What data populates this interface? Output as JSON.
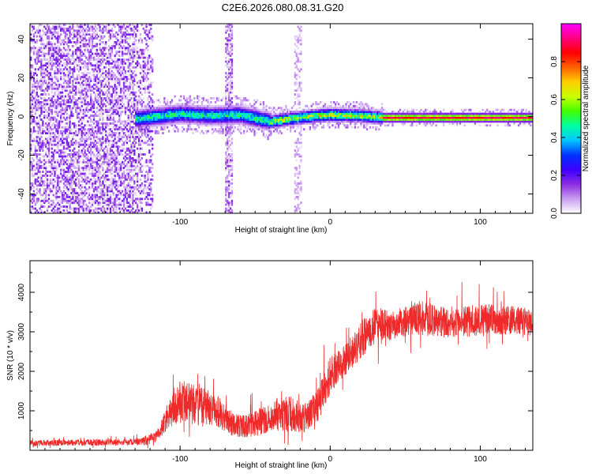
{
  "figure": {
    "title": "C2E6.2026.080.08.31.G20"
  },
  "chart_data": [
    {
      "type": "heatmap",
      "xlabel": "Height of straight line (km)",
      "ylabel": "Frequency (Hz)",
      "xlim": [
        -200,
        135
      ],
      "ylim": [
        -50,
        48
      ],
      "xticks": [
        -100,
        0,
        100
      ],
      "yticks": [
        -40,
        -20,
        0,
        20,
        40
      ],
      "colorbar": {
        "label": "Normalized spectral amplitude",
        "range": [
          0,
          1
        ],
        "ticks": [
          0.0,
          0.2,
          0.4,
          0.6,
          0.8
        ],
        "colormap": [
          "#ffffff",
          "#c89cf0",
          "#8a2be2",
          "#3a00ff",
          "#0033ff",
          "#00c8ff",
          "#00ffa0",
          "#40ff00",
          "#c8ff00",
          "#ffd000",
          "#ff6000",
          "#ff0000",
          "#ff0080",
          "#ff00ff"
        ]
      },
      "features": {
        "noise_region_x": [
          -200,
          -118
        ],
        "signal_ridge": [
          {
            "x": -128,
            "y": -1.5
          },
          {
            "x": -100,
            "y": 1.0
          },
          {
            "x": -80,
            "y": 0.0
          },
          {
            "x": -60,
            "y": 0.5
          },
          {
            "x": -40,
            "y": -3.0
          },
          {
            "x": -30,
            "y": -2.0
          },
          {
            "x": -10,
            "y": 0.0
          },
          {
            "x": 0,
            "y": 0.5
          },
          {
            "x": 20,
            "y": 0.0
          },
          {
            "x": 35,
            "y": -1.0
          },
          {
            "x": 60,
            "y": -1.0
          },
          {
            "x": 100,
            "y": -1.0
          },
          {
            "x": 135,
            "y": -1.0
          }
        ],
        "vertical_streaks_x": [
          -68,
          -22
        ]
      }
    },
    {
      "type": "line",
      "xlabel": "Height of straight line (km)",
      "ylabel": "SNR (10 * v/v)",
      "xlim": [
        -200,
        135
      ],
      "ylim": [
        0,
        4800
      ],
      "xticks": [
        -100,
        0,
        100
      ],
      "yticks": [
        1000,
        2000,
        3000,
        4000
      ],
      "series": [
        {
          "color": "#ee2a2a",
          "envelope": [
            {
              "x": -200,
              "mean": 180,
              "spread": 100
            },
            {
              "x": -150,
              "mean": 200,
              "spread": 110
            },
            {
              "x": -125,
              "mean": 220,
              "spread": 140
            },
            {
              "x": -115,
              "mean": 350,
              "spread": 200
            },
            {
              "x": -108,
              "mean": 900,
              "spread": 450
            },
            {
              "x": -100,
              "mean": 1250,
              "spread": 750
            },
            {
              "x": -85,
              "mean": 1100,
              "spread": 650
            },
            {
              "x": -75,
              "mean": 1000,
              "spread": 550
            },
            {
              "x": -65,
              "mean": 650,
              "spread": 400
            },
            {
              "x": -55,
              "mean": 600,
              "spread": 400
            },
            {
              "x": -40,
              "mean": 850,
              "spread": 500
            },
            {
              "x": -28,
              "mean": 950,
              "spread": 600
            },
            {
              "x": -18,
              "mean": 800,
              "spread": 500
            },
            {
              "x": -8,
              "mean": 1150,
              "spread": 550
            },
            {
              "x": 0,
              "mean": 1900,
              "spread": 650
            },
            {
              "x": 10,
              "mean": 2300,
              "spread": 550
            },
            {
              "x": 18,
              "mean": 2700,
              "spread": 650
            },
            {
              "x": 30,
              "mean": 3150,
              "spread": 600
            },
            {
              "x": 45,
              "mean": 3200,
              "spread": 500
            },
            {
              "x": 60,
              "mean": 3350,
              "spread": 600
            },
            {
              "x": 80,
              "mean": 3200,
              "spread": 500
            },
            {
              "x": 100,
              "mean": 3300,
              "spread": 550
            },
            {
              "x": 115,
              "mean": 3300,
              "spread": 500
            },
            {
              "x": 135,
              "mean": 3250,
              "spread": 450
            }
          ]
        }
      ]
    }
  ]
}
